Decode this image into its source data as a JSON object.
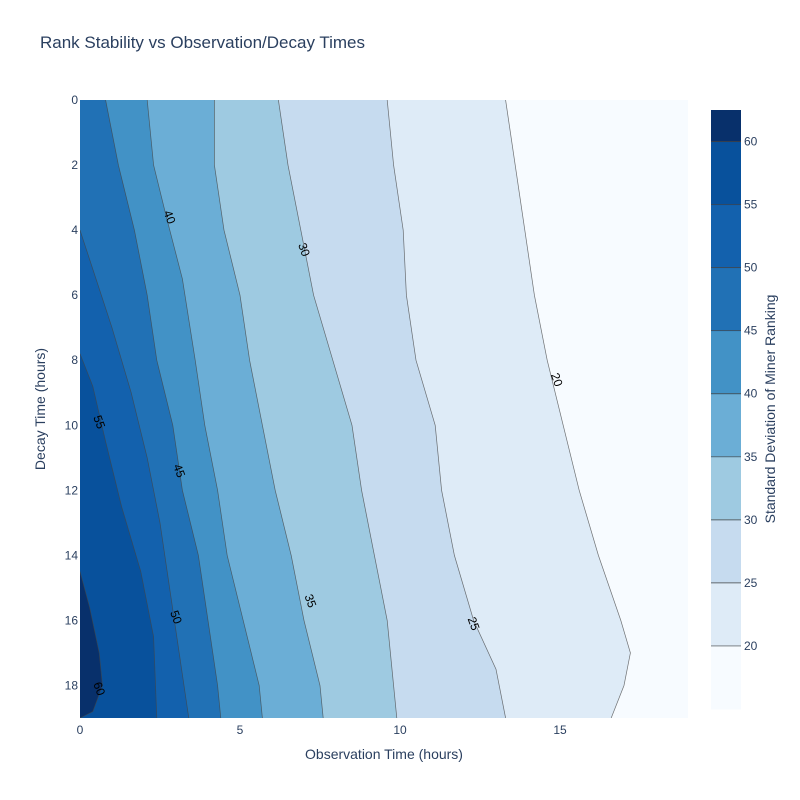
{
  "chart_data": {
    "type": "contour",
    "title": "Rank Stability vs Observation/Decay Times",
    "xlabel": "Observation Time (hours)",
    "ylabel": "Decay Time (hours)",
    "colorbar_label": "Standard Deviation of Miner Ranking",
    "xlim": [
      0,
      19
    ],
    "ylim": [
      19,
      0
    ],
    "y_reversed": true,
    "x_ticks": [
      0,
      5,
      10,
      15
    ],
    "y_ticks": [
      0,
      2,
      4,
      6,
      8,
      10,
      12,
      14,
      16,
      18
    ],
    "colorbar_ticks": [
      20,
      25,
      30,
      35,
      40,
      45,
      50,
      55,
      60
    ],
    "colorbar_range": [
      15,
      62.5
    ],
    "contour_levels": [
      20,
      25,
      30,
      35,
      40,
      45,
      50,
      55,
      60
    ],
    "band_colors": [
      "#f7fbff",
      "#deebf7",
      "#c6dbef",
      "#9ecae1",
      "#6baed6",
      "#4292c6",
      "#2171b5",
      "#1361ad",
      "#08519c",
      "#08306b"
    ],
    "contours": [
      {
        "level": 20,
        "label": "20",
        "label_at": [
          14.9,
          8.6
        ],
        "points": [
          [
            13.3,
            0
          ],
          [
            13.6,
            2
          ],
          [
            13.9,
            4
          ],
          [
            14.2,
            6
          ],
          [
            14.6,
            8
          ],
          [
            15.1,
            10
          ],
          [
            15.6,
            12
          ],
          [
            16.2,
            14
          ],
          [
            16.9,
            16
          ],
          [
            17.2,
            17
          ],
          [
            17.0,
            18
          ],
          [
            16.6,
            19
          ]
        ]
      },
      {
        "level": 25,
        "label": "25",
        "label_at": [
          12.3,
          16.1
        ],
        "points": [
          [
            9.6,
            0
          ],
          [
            9.8,
            2
          ],
          [
            10.1,
            4
          ],
          [
            10.2,
            6
          ],
          [
            10.5,
            8
          ],
          [
            11.1,
            10
          ],
          [
            11.3,
            12
          ],
          [
            11.7,
            14
          ],
          [
            12.3,
            16
          ],
          [
            13.0,
            17.5
          ],
          [
            13.3,
            19
          ]
        ]
      },
      {
        "level": 30,
        "label": "30",
        "label_at": [
          7.0,
          4.6
        ],
        "points": [
          [
            6.2,
            0
          ],
          [
            6.5,
            2
          ],
          [
            6.9,
            4
          ],
          [
            7.3,
            6
          ],
          [
            7.9,
            8
          ],
          [
            8.5,
            10
          ],
          [
            8.8,
            12
          ],
          [
            9.2,
            14
          ],
          [
            9.6,
            16
          ],
          [
            9.8,
            18
          ],
          [
            9.9,
            19
          ]
        ]
      },
      {
        "level": 35,
        "label": "35",
        "label_at": [
          7.2,
          15.4
        ],
        "points": [
          [
            4.2,
            0
          ],
          [
            4.2,
            2
          ],
          [
            4.5,
            4
          ],
          [
            5.0,
            6
          ],
          [
            5.3,
            8
          ],
          [
            5.7,
            10
          ],
          [
            6.1,
            12
          ],
          [
            6.6,
            14
          ],
          [
            7.0,
            16
          ],
          [
            7.5,
            18
          ],
          [
            7.6,
            19
          ]
        ]
      },
      {
        "level": 40,
        "label": "40",
        "label_at": [
          2.8,
          3.6
        ],
        "points": [
          [
            2.1,
            0
          ],
          [
            2.3,
            2
          ],
          [
            2.7,
            3.6
          ],
          [
            3.2,
            5.5
          ],
          [
            3.6,
            8
          ],
          [
            3.9,
            10
          ],
          [
            4.3,
            12
          ],
          [
            4.6,
            14
          ],
          [
            5.1,
            16
          ],
          [
            5.6,
            18
          ],
          [
            5.7,
            19
          ]
        ]
      },
      {
        "level": 45,
        "label": "45",
        "label_at": [
          3.1,
          11.4
        ],
        "points": [
          [
            0.8,
            0
          ],
          [
            1.2,
            2
          ],
          [
            1.7,
            4
          ],
          [
            2.1,
            6
          ],
          [
            2.4,
            8
          ],
          [
            2.9,
            10
          ],
          [
            3.2,
            12
          ],
          [
            3.7,
            14
          ],
          [
            4.0,
            16
          ],
          [
            4.3,
            18
          ],
          [
            4.4,
            19
          ]
        ]
      },
      {
        "level": 50,
        "label": "50",
        "label_at": [
          3.0,
          15.9
        ],
        "points": [
          [
            0,
            4
          ],
          [
            0.5,
            5.5
          ],
          [
            1.0,
            7
          ],
          [
            1.6,
            9
          ],
          [
            2.1,
            11
          ],
          [
            2.5,
            13
          ],
          [
            2.8,
            15
          ],
          [
            3.1,
            17
          ],
          [
            3.4,
            19
          ]
        ]
      },
      {
        "level": 55,
        "label": "55",
        "label_at": [
          0.6,
          9.9
        ],
        "points": [
          [
            0,
            7.8
          ],
          [
            0.4,
            8.8
          ],
          [
            0.8,
            10.5
          ],
          [
            1.3,
            12.5
          ],
          [
            1.9,
            14.5
          ],
          [
            2.3,
            16.5
          ],
          [
            2.4,
            19
          ]
        ]
      },
      {
        "level": 60,
        "label": "60",
        "label_at": [
          0.6,
          18.1
        ],
        "points": [
          [
            0,
            14.5
          ],
          [
            0.3,
            15.6
          ],
          [
            0.6,
            17.0
          ],
          [
            0.7,
            18.0
          ],
          [
            0.4,
            18.8
          ],
          [
            0,
            19
          ]
        ]
      }
    ]
  }
}
